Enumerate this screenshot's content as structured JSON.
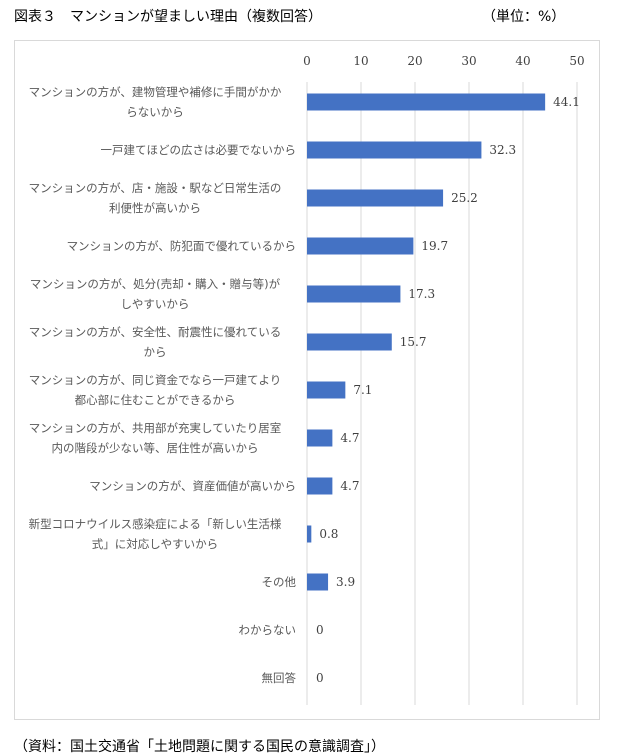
{
  "title": "図表３　マンションが望ましい理由（複数回答）",
  "unit": "（単位：%）",
  "source": "（資料：国土交通省「土地問題に関する国民の意識調査」）",
  "chart_data": {
    "type": "bar",
    "orientation": "horizontal",
    "categories": [
      "マンションの方が、建物管理や補修に手間がかからないから",
      "一戸建てほどの広さは必要でないから",
      "マンションの方が、店・施設・駅など日常生活の利便性が高いから",
      "マンションの方が、防犯面で優れているから",
      "マンションの方が、処分(売却・購入・贈与等)がしやすいから",
      "マンションの方が、安全性、耐震性に優れているから",
      "マンションの方が、同じ資金でなら一戸建てより都心部に住むことができるから",
      "マンションの方が、共用部が充実していたり居室内の階段が少ない等、居住性が高いから",
      "マンションの方が、資産価値が高いから",
      "新型コロナウイルス感染症による「新しい生活様式」に対応しやすいから",
      "その他",
      "わからない",
      "無回答"
    ],
    "values": [
      44.1,
      32.3,
      25.2,
      19.7,
      17.3,
      15.7,
      7.1,
      4.7,
      4.7,
      0.8,
      3.9,
      0,
      0
    ],
    "xlim": [
      0,
      50
    ],
    "ticks": [
      0,
      10,
      20,
      30,
      40,
      50
    ],
    "axis_position": "top",
    "grid": true,
    "bar_color": "#4472c4"
  }
}
